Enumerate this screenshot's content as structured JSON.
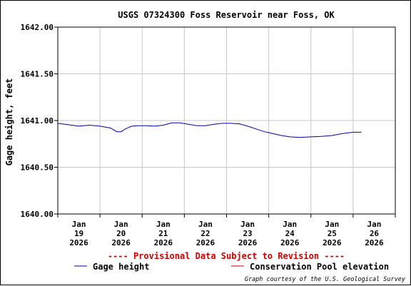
{
  "chart_data": {
    "type": "line",
    "title": "USGS 07324300 Foss Reservoir near Foss, OK",
    "ylabel": "Gage height, feet",
    "xlabel": "",
    "ylim": [
      1640.0,
      1642.0
    ],
    "xlim": [
      0,
      8
    ],
    "y_ticks": [
      {
        "value": 1640.0,
        "label": "1640.00"
      },
      {
        "value": 1640.5,
        "label": "1640.50"
      },
      {
        "value": 1641.0,
        "label": "1641.00"
      },
      {
        "value": 1641.5,
        "label": "1641.50"
      },
      {
        "value": 1642.0,
        "label": "1642.00"
      }
    ],
    "x_ticks": [
      {
        "value": 0.5,
        "line1": "Jan",
        "line2": "19",
        "line3": "2026"
      },
      {
        "value": 1.5,
        "line1": "Jan",
        "line2": "20",
        "line3": "2026"
      },
      {
        "value": 2.5,
        "line1": "Jan",
        "line2": "21",
        "line3": "2026"
      },
      {
        "value": 3.5,
        "line1": "Jan",
        "line2": "22",
        "line3": "2026"
      },
      {
        "value": 4.5,
        "line1": "Jan",
        "line2": "23",
        "line3": "2026"
      },
      {
        "value": 5.5,
        "line1": "Jan",
        "line2": "24",
        "line3": "2026"
      },
      {
        "value": 6.5,
        "line1": "Jan",
        "line2": "25",
        "line3": "2026"
      },
      {
        "value": 7.5,
        "line1": "Jan",
        "line2": "26",
        "line3": "2026"
      }
    ],
    "grid": true,
    "series": [
      {
        "name": "Gage height",
        "color": "#0000aa",
        "x": [
          0.0,
          0.25,
          0.5,
          0.75,
          1.0,
          1.25,
          1.4,
          1.5,
          1.6,
          1.75,
          1.9,
          2.1,
          2.3,
          2.5,
          2.7,
          2.9,
          3.1,
          3.3,
          3.5,
          3.7,
          3.9,
          4.1,
          4.3,
          4.5,
          4.7,
          4.9,
          5.1,
          5.3,
          5.5,
          5.75,
          6.0,
          6.25,
          6.5,
          6.75,
          7.0,
          7.2
        ],
        "y": [
          1640.97,
          1640.955,
          1640.94,
          1640.95,
          1640.94,
          1640.92,
          1640.88,
          1640.88,
          1640.91,
          1640.94,
          1640.945,
          1640.945,
          1640.94,
          1640.95,
          1640.975,
          1640.975,
          1640.96,
          1640.945,
          1640.945,
          1640.96,
          1640.97,
          1640.97,
          1640.965,
          1640.94,
          1640.91,
          1640.88,
          1640.86,
          1640.84,
          1640.825,
          1640.82,
          1640.825,
          1640.83,
          1640.84,
          1640.86,
          1640.875,
          1640.875
        ]
      },
      {
        "name": "Conservation Pool elevation",
        "color": "#cc0000",
        "x": [
          0.0,
          8.0
        ],
        "y": [
          1642.0,
          1642.0
        ]
      }
    ],
    "legend_position": "bottom"
  },
  "notice": "---- Provisional Data Subject to Revision ----",
  "credit": "Graph courtesy of the U.S. Geological Survey",
  "colors": {
    "notice": "#cc0000",
    "grid": "#c8c8c8",
    "axis": "#000000",
    "text": "#000000"
  }
}
